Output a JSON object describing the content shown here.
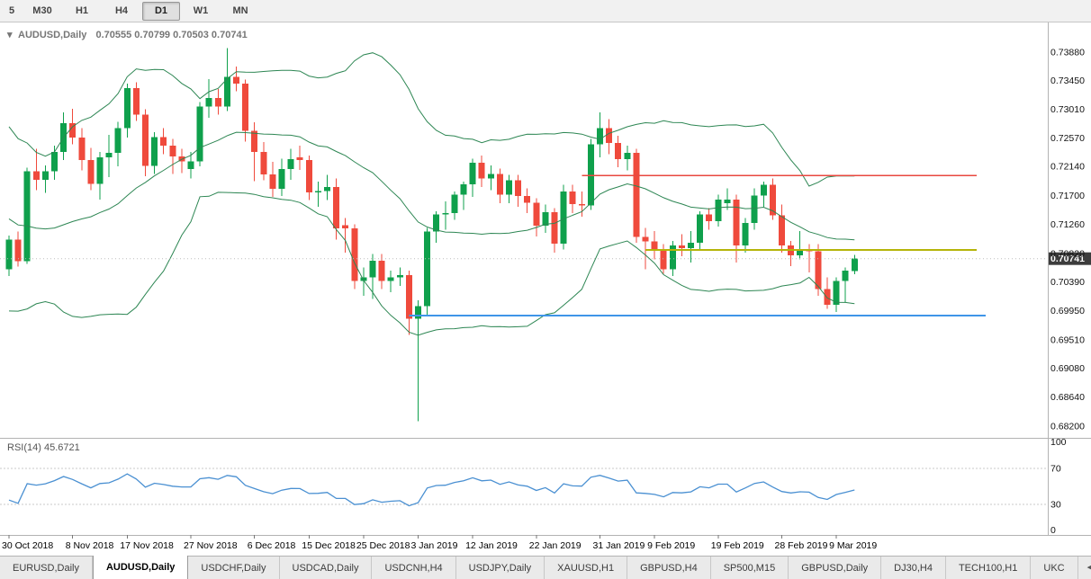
{
  "toolbar": {
    "timeframes": [
      {
        "label": "5",
        "active": false
      },
      {
        "label": "M30",
        "active": false
      },
      {
        "label": "H1",
        "active": false
      },
      {
        "label": "H4",
        "active": false
      },
      {
        "label": "D1",
        "active": true
      },
      {
        "label": "W1",
        "active": false
      },
      {
        "label": "MN",
        "active": false
      }
    ]
  },
  "chart": {
    "marker_icon": "▾",
    "title_symbol": "AUDUSD,Daily",
    "title_ohlc": "0.70555 0.70799 0.70503 0.70741",
    "price_badge": "0.70741",
    "price_axis_labels": [
      "0.73880",
      "0.73450",
      "0.73010",
      "0.72570",
      "0.72140",
      "0.71700",
      "0.71260",
      "0.70820",
      "0.70390",
      "0.69950",
      "0.69510",
      "0.69080",
      "0.68640",
      "0.68200"
    ],
    "colors": {
      "up": "#0fa04c",
      "down": "#ef4a3c",
      "bollinger": "#2d8653",
      "rsi": "#4a90d2",
      "badge_bg": "#3c3c3c",
      "badge_text": "#ffffff",
      "separator": "#b3b3b3",
      "bid_line": "#bdbdbd"
    }
  },
  "chart_data": {
    "type": "candlestick",
    "symbol": "AUDUSD",
    "period": "Daily",
    "last_ohlc": {
      "open": 0.70555,
      "high": 0.70799,
      "low": 0.70503,
      "close": 0.70741
    },
    "ylim": [
      0.6802,
      0.743
    ],
    "x_ticks": [
      {
        "label": "30 Oct 2018",
        "index": 0
      },
      {
        "label": "8 Nov 2018",
        "index": 7
      },
      {
        "label": "17 Nov 2018",
        "index": 13
      },
      {
        "label": "27 Nov 2018",
        "index": 20
      },
      {
        "label": "6 Dec 2018",
        "index": 27
      },
      {
        "label": "15 Dec 2018",
        "index": 33
      },
      {
        "label": "25 Dec 2018",
        "index": 39
      },
      {
        "label": "3 Jan 2019",
        "index": 45
      },
      {
        "label": "12 Jan 2019",
        "index": 51
      },
      {
        "label": "22 Jan 2019",
        "index": 58
      },
      {
        "label": "31 Jan 2019",
        "index": 65
      },
      {
        "label": "9 Feb 2019",
        "index": 71
      },
      {
        "label": "19 Feb 2019",
        "index": 78
      },
      {
        "label": "28 Feb 2019",
        "index": 85
      },
      {
        "label": "9 Mar 2019",
        "index": 91
      }
    ],
    "pre_closes": [
      0.7272,
      0.7255,
      0.724,
      0.7258,
      0.7232,
      0.7208,
      0.7182,
      0.716,
      0.7145,
      0.7122,
      0.71,
      0.7128,
      0.7112,
      0.7085,
      0.7062,
      0.7045,
      0.706,
      0.708,
      0.7052,
      0.7063
    ],
    "candles": [
      [
        0.7058,
        0.7109,
        0.7048,
        0.7103
      ],
      [
        0.7103,
        0.7115,
        0.7062,
        0.707
      ],
      [
        0.707,
        0.7212,
        0.7066,
        0.7207
      ],
      [
        0.7207,
        0.7241,
        0.7178,
        0.7194
      ],
      [
        0.7194,
        0.7216,
        0.7174,
        0.7207
      ],
      [
        0.7207,
        0.7246,
        0.7194,
        0.7236
      ],
      [
        0.7236,
        0.7296,
        0.7224,
        0.728
      ],
      [
        0.728,
        0.7302,
        0.7248,
        0.7258
      ],
      [
        0.7258,
        0.7272,
        0.7208,
        0.7224
      ],
      [
        0.7224,
        0.7242,
        0.7178,
        0.7188
      ],
      [
        0.7188,
        0.7236,
        0.7164,
        0.7228
      ],
      [
        0.7228,
        0.7262,
        0.7198,
        0.7235
      ],
      [
        0.7235,
        0.7282,
        0.7214,
        0.7272
      ],
      [
        0.7272,
        0.734,
        0.7258,
        0.7333
      ],
      [
        0.7333,
        0.7342,
        0.7283,
        0.7293
      ],
      [
        0.7293,
        0.7301,
        0.7199,
        0.7215
      ],
      [
        0.7215,
        0.7266,
        0.7203,
        0.7259
      ],
      [
        0.7259,
        0.7272,
        0.7233,
        0.7246
      ],
      [
        0.7246,
        0.7256,
        0.7203,
        0.7229
      ],
      [
        0.7229,
        0.7241,
        0.7204,
        0.7222
      ],
      [
        0.721,
        0.7236,
        0.7196,
        0.7222
      ],
      [
        0.7222,
        0.7312,
        0.7214,
        0.7305
      ],
      [
        0.7305,
        0.7347,
        0.7288,
        0.7318
      ],
      [
        0.7318,
        0.7332,
        0.7293,
        0.7305
      ],
      [
        0.7305,
        0.7394,
        0.7298,
        0.735
      ],
      [
        0.735,
        0.7366,
        0.7328,
        0.734
      ],
      [
        0.734,
        0.7346,
        0.7252,
        0.7268
      ],
      [
        0.7268,
        0.7281,
        0.7192,
        0.7236
      ],
      [
        0.7236,
        0.7251,
        0.7193,
        0.7202
      ],
      [
        0.7202,
        0.7221,
        0.7168,
        0.718
      ],
      [
        0.718,
        0.7226,
        0.7169,
        0.721
      ],
      [
        0.721,
        0.7241,
        0.7194,
        0.7225
      ],
      [
        0.7228,
        0.7246,
        0.7209,
        0.7224
      ],
      [
        0.7224,
        0.7231,
        0.7163,
        0.7175
      ],
      [
        0.7175,
        0.7191,
        0.7153,
        0.7177
      ],
      [
        0.7177,
        0.7201,
        0.7163,
        0.7183
      ],
      [
        0.7183,
        0.7196,
        0.7103,
        0.712
      ],
      [
        0.7125,
        0.7136,
        0.7083,
        0.712
      ],
      [
        0.712,
        0.7126,
        0.7028,
        0.704
      ],
      [
        0.704,
        0.7061,
        0.7018,
        0.7046
      ],
      [
        0.7046,
        0.7081,
        0.7013,
        0.7071
      ],
      [
        0.7071,
        0.7081,
        0.7028,
        0.704
      ],
      [
        0.704,
        0.7056,
        0.7023,
        0.7046
      ],
      [
        0.7046,
        0.7061,
        0.7033,
        0.7049
      ],
      [
        0.7049,
        0.7056,
        0.6958,
        0.6983
      ],
      [
        0.6983,
        0.7011,
        0.6827,
        0.7002
      ],
      [
        0.7002,
        0.7121,
        0.6988,
        0.7115
      ],
      [
        0.7115,
        0.7146,
        0.7098,
        0.7141
      ],
      [
        0.7141,
        0.7161,
        0.7118,
        0.7143
      ],
      [
        0.7143,
        0.7176,
        0.7133,
        0.7171
      ],
      [
        0.7171,
        0.7191,
        0.7148,
        0.7187
      ],
      [
        0.7187,
        0.7226,
        0.7168,
        0.722
      ],
      [
        0.722,
        0.7231,
        0.7183,
        0.7196
      ],
      [
        0.7196,
        0.7216,
        0.7178,
        0.7203
      ],
      [
        0.7203,
        0.7211,
        0.7158,
        0.7171
      ],
      [
        0.7171,
        0.7201,
        0.7158,
        0.7193
      ],
      [
        0.7193,
        0.7201,
        0.7153,
        0.7169
      ],
      [
        0.7169,
        0.7181,
        0.7143,
        0.7159
      ],
      [
        0.7159,
        0.7166,
        0.7108,
        0.7124
      ],
      [
        0.7124,
        0.7156,
        0.7113,
        0.7145
      ],
      [
        0.7145,
        0.7151,
        0.7083,
        0.7097
      ],
      [
        0.7097,
        0.7186,
        0.7088,
        0.7176
      ],
      [
        0.7176,
        0.7186,
        0.7143,
        0.7157
      ],
      [
        0.7157,
        0.7176,
        0.7138,
        0.7155
      ],
      [
        0.7155,
        0.7256,
        0.7148,
        0.7248
      ],
      [
        0.7248,
        0.7296,
        0.7228,
        0.7272
      ],
      [
        0.7272,
        0.7286,
        0.7233,
        0.725
      ],
      [
        0.725,
        0.7261,
        0.7213,
        0.7225
      ],
      [
        0.7225,
        0.7246,
        0.7208,
        0.7235
      ],
      [
        0.7235,
        0.7241,
        0.7098,
        0.7107
      ],
      [
        0.7107,
        0.7121,
        0.7058,
        0.71
      ],
      [
        0.71,
        0.7116,
        0.7073,
        0.7088
      ],
      [
        0.7088,
        0.7096,
        0.7051,
        0.7058
      ],
      [
        0.7058,
        0.7101,
        0.7048,
        0.7094
      ],
      [
        0.7094,
        0.7111,
        0.7078,
        0.709
      ],
      [
        0.709,
        0.7116,
        0.7068,
        0.7098
      ],
      [
        0.7098,
        0.7146,
        0.7088,
        0.7141
      ],
      [
        0.7141,
        0.7151,
        0.7118,
        0.7131
      ],
      [
        0.7131,
        0.7171,
        0.7123,
        0.7164
      ],
      [
        0.7158,
        0.7181,
        0.7148,
        0.7164
      ],
      [
        0.7164,
        0.7171,
        0.7068,
        0.7094
      ],
      [
        0.7094,
        0.7136,
        0.7083,
        0.7128
      ],
      [
        0.7128,
        0.7181,
        0.7118,
        0.717
      ],
      [
        0.717,
        0.7191,
        0.7153,
        0.7186
      ],
      [
        0.7186,
        0.7196,
        0.7133,
        0.714
      ],
      [
        0.714,
        0.7156,
        0.7083,
        0.7094
      ],
      [
        0.7094,
        0.7101,
        0.7063,
        0.7079
      ],
      [
        0.7079,
        0.7116,
        0.7073,
        0.7088
      ],
      [
        0.7088,
        0.7096,
        0.7053,
        0.7085
      ],
      [
        0.7085,
        0.7096,
        0.7018,
        0.7028
      ],
      [
        0.7028,
        0.7046,
        0.6998,
        0.7004
      ],
      [
        0.7004,
        0.7046,
        0.6993,
        0.704
      ],
      [
        0.704,
        0.7061,
        0.7008,
        0.7056
      ],
      [
        0.70555,
        0.70799,
        0.70503,
        0.70741
      ]
    ],
    "hlines": [
      {
        "name": "resistance-line",
        "price": 0.72,
        "color": "#e8483f",
        "start_index": 63,
        "end_x": 1085,
        "width": 1.5
      },
      {
        "name": "mid-level-line",
        "price": 0.7087,
        "color": "#b5b409",
        "start_index": 70,
        "end_x": 1085,
        "width": 2
      },
      {
        "name": "support-line",
        "price": 0.6988,
        "color": "#3f95e8",
        "start_index": 44,
        "end_x": 1095,
        "width": 2
      }
    ],
    "indicators": {
      "bollinger": {
        "period": 20,
        "deviation": 2
      },
      "rsi": {
        "period": 14,
        "value": 45.6721,
        "ylim": [
          0,
          100
        ],
        "levels": [
          70,
          30
        ]
      }
    }
  },
  "rsi_panel": {
    "label": "RSI(14) 45.6721",
    "axis_labels": [
      "100",
      "70",
      "30",
      "0"
    ]
  },
  "tabs": {
    "items": [
      {
        "label": "EURUSD,Daily",
        "active": false
      },
      {
        "label": "AUDUSD,Daily",
        "active": true
      },
      {
        "label": "USDCHF,Daily",
        "active": false
      },
      {
        "label": "USDCAD,Daily",
        "active": false
      },
      {
        "label": "USDCNH,H4",
        "active": false
      },
      {
        "label": "USDJPY,Daily",
        "active": false
      },
      {
        "label": "XAUUSD,H1",
        "active": false
      },
      {
        "label": "GBPUSD,H4",
        "active": false
      },
      {
        "label": "SP500,M15",
        "active": false
      },
      {
        "label": "GBPUSD,Daily",
        "active": false
      },
      {
        "label": "DJ30,H4",
        "active": false
      },
      {
        "label": "TECH100,H1",
        "active": false
      },
      {
        "label": "UKC",
        "active": false
      }
    ],
    "scroll_icon": "◄"
  }
}
